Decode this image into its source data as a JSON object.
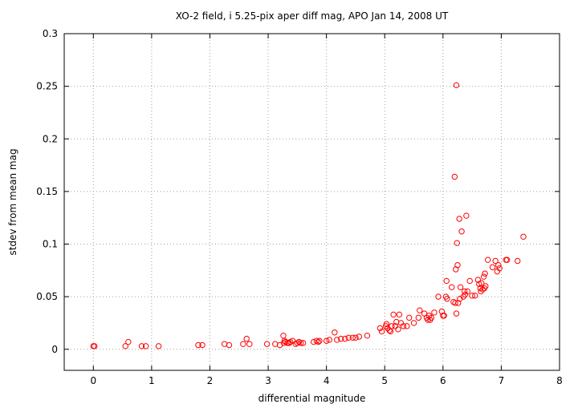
{
  "chart_data": {
    "type": "scatter",
    "title": "XO-2 field, i 5.25-pix aper diff mag, APO Jan 14, 2008 UT",
    "xlabel": "differential magnitude",
    "ylabel": "stdev from mean mag",
    "xlim": [
      -0.5,
      8
    ],
    "ylim": [
      -0.02,
      0.3
    ],
    "grid": true,
    "xticks": [
      0,
      1,
      2,
      3,
      4,
      5,
      6,
      7,
      8
    ],
    "yticks": [
      0,
      0.05,
      0.1,
      0.15,
      0.2,
      0.25,
      0.3
    ],
    "xtick_labels": [
      "0",
      "1",
      "2",
      "3",
      "4",
      "5",
      "6",
      "7",
      "8"
    ],
    "ytick_labels": [
      "0",
      "0.05",
      "0.1",
      "0.15",
      "0.2",
      "0.25",
      "0.3"
    ],
    "marker_color": "#ff0000",
    "marker": "open-circle",
    "series": [
      {
        "points": [
          [
            0.0,
            0.003
          ],
          [
            0.02,
            0.003
          ],
          [
            0.55,
            0.003
          ],
          [
            0.6,
            0.007
          ],
          [
            0.83,
            0.003
          ],
          [
            0.9,
            0.003
          ],
          [
            1.12,
            0.003
          ],
          [
            1.8,
            0.004
          ],
          [
            1.87,
            0.004
          ],
          [
            2.25,
            0.005
          ],
          [
            2.33,
            0.004
          ],
          [
            2.57,
            0.005
          ],
          [
            2.63,
            0.01
          ],
          [
            2.68,
            0.005
          ],
          [
            2.98,
            0.005
          ],
          [
            3.12,
            0.005
          ],
          [
            3.2,
            0.004
          ],
          [
            3.26,
            0.013
          ],
          [
            3.27,
            0.006
          ],
          [
            3.28,
            0.008
          ],
          [
            3.3,
            0.007
          ],
          [
            3.33,
            0.006
          ],
          [
            3.36,
            0.006
          ],
          [
            3.38,
            0.007
          ],
          [
            3.42,
            0.008
          ],
          [
            3.47,
            0.005
          ],
          [
            3.5,
            0.006
          ],
          [
            3.53,
            0.007
          ],
          [
            3.56,
            0.006
          ],
          [
            3.6,
            0.006
          ],
          [
            3.78,
            0.007
          ],
          [
            3.83,
            0.008
          ],
          [
            3.86,
            0.007
          ],
          [
            3.88,
            0.008
          ],
          [
            4.0,
            0.008
          ],
          [
            4.05,
            0.009
          ],
          [
            4.14,
            0.016
          ],
          [
            4.18,
            0.009
          ],
          [
            4.25,
            0.01
          ],
          [
            4.32,
            0.01
          ],
          [
            4.38,
            0.011
          ],
          [
            4.45,
            0.011
          ],
          [
            4.5,
            0.011
          ],
          [
            4.56,
            0.012
          ],
          [
            4.7,
            0.013
          ],
          [
            4.92,
            0.02
          ],
          [
            4.95,
            0.017
          ],
          [
            5.02,
            0.022
          ],
          [
            5.03,
            0.024
          ],
          [
            5.05,
            0.02
          ],
          [
            5.08,
            0.018
          ],
          [
            5.1,
            0.017
          ],
          [
            5.12,
            0.022
          ],
          [
            5.15,
            0.033
          ],
          [
            5.18,
            0.022
          ],
          [
            5.2,
            0.026
          ],
          [
            5.23,
            0.019
          ],
          [
            5.25,
            0.033
          ],
          [
            5.28,
            0.025
          ],
          [
            5.32,
            0.022
          ],
          [
            5.38,
            0.022
          ],
          [
            5.42,
            0.03
          ],
          [
            5.5,
            0.025
          ],
          [
            5.58,
            0.03
          ],
          [
            5.6,
            0.037
          ],
          [
            5.68,
            0.034
          ],
          [
            5.72,
            0.03
          ],
          [
            5.74,
            0.028
          ],
          [
            5.76,
            0.032
          ],
          [
            5.78,
            0.028
          ],
          [
            5.8,
            0.03
          ],
          [
            5.85,
            0.035
          ],
          [
            5.92,
            0.05
          ],
          [
            5.98,
            0.036
          ],
          [
            6.0,
            0.032
          ],
          [
            6.02,
            0.032
          ],
          [
            6.05,
            0.05
          ],
          [
            6.06,
            0.065
          ],
          [
            6.07,
            0.048
          ],
          [
            6.15,
            0.059
          ],
          [
            6.18,
            0.045
          ],
          [
            6.2,
            0.164
          ],
          [
            6.21,
            0.044
          ],
          [
            6.22,
            0.076
          ],
          [
            6.23,
            0.034
          ],
          [
            6.24,
            0.101
          ],
          [
            6.25,
            0.08
          ],
          [
            6.26,
            0.044
          ],
          [
            6.28,
            0.124
          ],
          [
            6.29,
            0.048
          ],
          [
            6.3,
            0.059
          ],
          [
            6.32,
            0.112
          ],
          [
            6.35,
            0.05
          ],
          [
            6.37,
            0.055
          ],
          [
            6.38,
            0.052
          ],
          [
            6.4,
            0.127
          ],
          [
            6.42,
            0.055
          ],
          [
            6.46,
            0.065
          ],
          [
            6.5,
            0.051
          ],
          [
            6.55,
            0.051
          ],
          [
            6.6,
            0.066
          ],
          [
            6.62,
            0.062
          ],
          [
            6.64,
            0.058
          ],
          [
            6.65,
            0.055
          ],
          [
            6.66,
            0.063
          ],
          [
            6.68,
            0.057
          ],
          [
            6.7,
            0.069
          ],
          [
            6.71,
            0.058
          ],
          [
            6.72,
            0.072
          ],
          [
            6.73,
            0.06
          ],
          [
            6.77,
            0.085
          ],
          [
            6.85,
            0.078
          ],
          [
            6.9,
            0.084
          ],
          [
            6.93,
            0.074
          ],
          [
            6.95,
            0.08
          ],
          [
            6.97,
            0.077
          ],
          [
            7.08,
            0.085
          ],
          [
            7.1,
            0.085
          ],
          [
            7.28,
            0.084
          ],
          [
            7.38,
            0.107
          ],
          [
            6.23,
            0.251
          ]
        ]
      }
    ]
  }
}
